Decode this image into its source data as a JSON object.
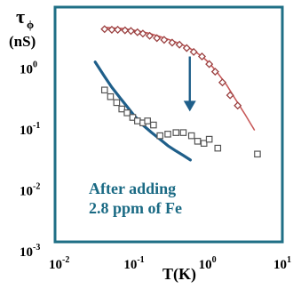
{
  "colors": {
    "plot_frame": "#1f6f86",
    "background": "#ffffff",
    "fit_curve": "#c85a5a",
    "diamond_marker": "#9a4040",
    "square_marker": "#555555",
    "arrow": "#1f5f8a",
    "fe_curve": "#1f5f8a",
    "annotation": "#1a6a84"
  },
  "chart_data": {
    "type": "scatter",
    "xscale": "log",
    "yscale": "log",
    "xlim": [
      0.01,
      10
    ],
    "ylim": [
      0.001,
      10
    ],
    "xlabel": "T(K)",
    "ylabel_main": "τ",
    "ylabel_sub": "ϕ",
    "ylabel_units": "(nS)",
    "grid": false,
    "x_ticks": [
      {
        "value": 0.01,
        "base": "10",
        "exp": "-2"
      },
      {
        "value": 0.1,
        "base": "10",
        "exp": "-1"
      },
      {
        "value": 1,
        "base": "10",
        "exp": "0"
      },
      {
        "value": 10,
        "base": "10",
        "exp": "1"
      }
    ],
    "y_ticks": [
      {
        "value": 1,
        "base": "10",
        "exp": "0"
      },
      {
        "value": 0.1,
        "base": "10",
        "exp": "-1"
      },
      {
        "value": 0.01,
        "base": "10",
        "exp": "-2"
      },
      {
        "value": 0.001,
        "base": "10",
        "exp": "-3"
      }
    ],
    "series": [
      {
        "marker": "diamond",
        "x": [
          0.04,
          0.05,
          0.06,
          0.075,
          0.09,
          0.11,
          0.13,
          0.16,
          0.2,
          0.25,
          0.32,
          0.4,
          0.5,
          0.62,
          0.8,
          1.0,
          1.2,
          1.5,
          1.9,
          2.4
        ],
        "y": [
          4.5,
          4.4,
          4.4,
          4.3,
          4.2,
          4.0,
          3.8,
          3.5,
          3.2,
          3.0,
          2.7,
          2.5,
          2.2,
          1.9,
          1.6,
          1.2,
          0.9,
          0.6,
          0.37,
          0.25
        ]
      },
      {
        "marker": "square",
        "x": [
          0.04,
          0.048,
          0.058,
          0.068,
          0.08,
          0.095,
          0.11,
          0.13,
          0.15,
          0.18,
          0.22,
          0.28,
          0.36,
          0.45,
          0.58,
          0.7,
          0.85,
          1.0,
          1.3,
          4.4
        ],
        "y": [
          0.45,
          0.35,
          0.28,
          0.22,
          0.19,
          0.16,
          0.14,
          0.13,
          0.14,
          0.12,
          0.08,
          0.085,
          0.09,
          0.09,
          0.08,
          0.065,
          0.06,
          0.07,
          0.05,
          0.04
        ]
      }
    ],
    "curves": [
      {
        "style": "fit",
        "x": [
          0.04,
          0.07,
          0.1,
          0.15,
          0.22,
          0.32,
          0.45,
          0.6,
          0.8,
          1.0,
          1.3,
          1.7,
          2.2,
          3.0,
          4.0
        ],
        "y": [
          4.8,
          4.6,
          4.3,
          3.9,
          3.4,
          2.9,
          2.45,
          2.05,
          1.6,
          1.25,
          0.85,
          0.55,
          0.33,
          0.18,
          0.1
        ]
      },
      {
        "style": "fe",
        "x": [
          0.03,
          0.04,
          0.05,
          0.065,
          0.08,
          0.1,
          0.13,
          0.17,
          0.22,
          0.28,
          0.36,
          0.45,
          0.56
        ],
        "y": [
          1.3,
          0.75,
          0.5,
          0.33,
          0.24,
          0.17,
          0.12,
          0.09,
          0.07,
          0.055,
          0.045,
          0.038,
          0.032
        ]
      }
    ],
    "arrow": {
      "x": 0.55,
      "y_from": 1.6,
      "y_to": 0.2
    },
    "annotation_lines": [
      "After adding",
      "2.8 ppm of Fe"
    ]
  }
}
